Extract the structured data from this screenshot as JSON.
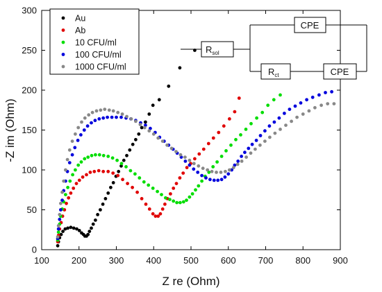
{
  "chart_data": {
    "type": "scatter",
    "xlabel": "Z re (Ohm)",
    "ylabel": "-Z im (Ohm)",
    "xlim": [
      100,
      900
    ],
    "ylim": [
      0,
      300
    ],
    "xticks": [
      100,
      200,
      300,
      400,
      500,
      600,
      700,
      800,
      900
    ],
    "yticks": [
      0,
      50,
      100,
      150,
      200,
      250,
      300
    ],
    "legend_position": "top-left",
    "series": [
      {
        "name": "Au",
        "color": "#000000",
        "points": [
          [
            143,
            5
          ],
          [
            145,
            10
          ],
          [
            148,
            15
          ],
          [
            152,
            19
          ],
          [
            157,
            23
          ],
          [
            163,
            26
          ],
          [
            170,
            27
          ],
          [
            178,
            28
          ],
          [
            186,
            27
          ],
          [
            194,
            26
          ],
          [
            201,
            24
          ],
          [
            207,
            21
          ],
          [
            212,
            19
          ],
          [
            216,
            17
          ],
          [
            220,
            17
          ],
          [
            224,
            19
          ],
          [
            228,
            23
          ],
          [
            233,
            27
          ],
          [
            238,
            32
          ],
          [
            244,
            37
          ],
          [
            250,
            44
          ],
          [
            257,
            50
          ],
          [
            264,
            57
          ],
          [
            271,
            64
          ],
          [
            278,
            71
          ],
          [
            285,
            78
          ],
          [
            292,
            84
          ],
          [
            299,
            92
          ],
          [
            306,
            98
          ],
          [
            313,
            105
          ],
          [
            320,
            112
          ],
          [
            328,
            118
          ],
          [
            336,
            125
          ],
          [
            344,
            132
          ],
          [
            352,
            138
          ],
          [
            360,
            145
          ],
          [
            368,
            153
          ],
          [
            378,
            160
          ],
          [
            388,
            170
          ],
          [
            398,
            181
          ],
          [
            415,
            188
          ],
          [
            440,
            205
          ],
          [
            470,
            228
          ],
          [
            510,
            250
          ]
        ]
      },
      {
        "name": "Ab",
        "color": "#e00000",
        "points": [
          [
            143,
            10
          ],
          [
            145,
            18
          ],
          [
            148,
            26
          ],
          [
            152,
            34
          ],
          [
            156,
            42
          ],
          [
            161,
            50
          ],
          [
            166,
            58
          ],
          [
            172,
            65
          ],
          [
            178,
            71
          ],
          [
            185,
            77
          ],
          [
            193,
            83
          ],
          [
            201,
            87
          ],
          [
            210,
            91
          ],
          [
            220,
            94
          ],
          [
            230,
            97
          ],
          [
            241,
            98
          ],
          [
            253,
            99
          ],
          [
            265,
            98
          ],
          [
            278,
            98
          ],
          [
            291,
            96
          ],
          [
            304,
            93
          ],
          [
            317,
            88
          ],
          [
            330,
            83
          ],
          [
            343,
            78
          ],
          [
            356,
            72
          ],
          [
            368,
            64
          ],
          [
            379,
            57
          ],
          [
            389,
            51
          ],
          [
            398,
            45
          ],
          [
            405,
            42
          ],
          [
            412,
            42
          ],
          [
            418,
            45
          ],
          [
            424,
            51
          ],
          [
            430,
            57
          ],
          [
            437,
            64
          ],
          [
            445,
            70
          ],
          [
            453,
            77
          ],
          [
            461,
            83
          ],
          [
            470,
            90
          ],
          [
            479,
            96
          ],
          [
            489,
            103
          ],
          [
            499,
            108
          ],
          [
            510,
            114
          ],
          [
            522,
            120
          ],
          [
            534,
            126
          ],
          [
            547,
            133
          ],
          [
            560,
            140
          ],
          [
            574,
            147
          ],
          [
            588,
            155
          ],
          [
            603,
            164
          ],
          [
            617,
            173
          ],
          [
            629,
            190
          ]
        ]
      },
      {
        "name": "10 CFU/ml",
        "color": "#00dd00",
        "points": [
          [
            143,
            12
          ],
          [
            145,
            22
          ],
          [
            148,
            32
          ],
          [
            151,
            42
          ],
          [
            155,
            51
          ],
          [
            159,
            60
          ],
          [
            164,
            69
          ],
          [
            170,
            78
          ],
          [
            176,
            86
          ],
          [
            183,
            94
          ],
          [
            190,
            100
          ],
          [
            198,
            106
          ],
          [
            206,
            110
          ],
          [
            215,
            114
          ],
          [
            224,
            116
          ],
          [
            234,
            118
          ],
          [
            244,
            119
          ],
          [
            255,
            119
          ],
          [
            266,
            118
          ],
          [
            278,
            117
          ],
          [
            290,
            115
          ],
          [
            302,
            112
          ],
          [
            314,
            108
          ],
          [
            326,
            104
          ],
          [
            338,
            99
          ],
          [
            350,
            95
          ],
          [
            362,
            90
          ],
          [
            374,
            85
          ],
          [
            386,
            81
          ],
          [
            398,
            77
          ],
          [
            410,
            73
          ],
          [
            421,
            69
          ],
          [
            432,
            65
          ],
          [
            443,
            63
          ],
          [
            453,
            61
          ],
          [
            462,
            59
          ],
          [
            471,
            59
          ],
          [
            480,
            60
          ],
          [
            488,
            62
          ],
          [
            496,
            66
          ],
          [
            504,
            70
          ],
          [
            512,
            75
          ],
          [
            520,
            80
          ],
          [
            529,
            86
          ],
          [
            538,
            92
          ],
          [
            548,
            97
          ],
          [
            559,
            104
          ],
          [
            570,
            110
          ],
          [
            582,
            117
          ],
          [
            594,
            124
          ],
          [
            607,
            131
          ],
          [
            620,
            138
          ],
          [
            633,
            144
          ],
          [
            647,
            151
          ],
          [
            661,
            158
          ],
          [
            676,
            165
          ],
          [
            691,
            172
          ],
          [
            706,
            181
          ],
          [
            722,
            188
          ],
          [
            739,
            194
          ]
        ]
      },
      {
        "name": "100 CFU/ml",
        "color": "#0000dd",
        "points": [
          [
            143,
            14
          ],
          [
            145,
            26
          ],
          [
            148,
            38
          ],
          [
            151,
            50
          ],
          [
            155,
            62
          ],
          [
            159,
            74
          ],
          [
            164,
            86
          ],
          [
            169,
            98
          ],
          [
            175,
            109
          ],
          [
            182,
            119
          ],
          [
            189,
            128
          ],
          [
            197,
            137
          ],
          [
            205,
            144
          ],
          [
            214,
            150
          ],
          [
            223,
            155
          ],
          [
            233,
            159
          ],
          [
            243,
            162
          ],
          [
            254,
            164
          ],
          [
            265,
            165
          ],
          [
            276,
            166
          ],
          [
            288,
            166
          ],
          [
            300,
            166
          ],
          [
            313,
            166
          ],
          [
            326,
            165
          ],
          [
            339,
            164
          ],
          [
            352,
            162
          ],
          [
            365,
            159
          ],
          [
            378,
            156
          ],
          [
            391,
            152
          ],
          [
            404,
            147
          ],
          [
            416,
            141
          ],
          [
            428,
            136
          ],
          [
            440,
            131
          ],
          [
            452,
            126
          ],
          [
            463,
            121
          ],
          [
            474,
            116
          ],
          [
            485,
            111
          ],
          [
            496,
            106
          ],
          [
            507,
            101
          ],
          [
            518,
            97
          ],
          [
            529,
            93
          ],
          [
            540,
            90
          ],
          [
            551,
            88
          ],
          [
            562,
            87
          ],
          [
            572,
            87
          ],
          [
            582,
            88
          ],
          [
            591,
            91
          ],
          [
            600,
            95
          ],
          [
            609,
            100
          ],
          [
            617,
            106
          ],
          [
            626,
            111
          ],
          [
            635,
            117
          ],
          [
            644,
            122
          ],
          [
            654,
            127
          ],
          [
            664,
            132
          ],
          [
            675,
            137
          ],
          [
            686,
            143
          ],
          [
            698,
            149
          ],
          [
            710,
            155
          ],
          [
            723,
            160
          ],
          [
            736,
            165
          ],
          [
            750,
            171
          ],
          [
            764,
            176
          ],
          [
            779,
            180
          ],
          [
            794,
            184
          ],
          [
            810,
            188
          ],
          [
            826,
            191
          ],
          [
            843,
            194
          ],
          [
            860,
            197
          ],
          [
            877,
            198
          ]
        ]
      },
      {
        "name": "1000 CFU/ml",
        "color": "#888888",
        "points": [
          [
            143,
            16
          ],
          [
            145,
            30
          ],
          [
            148,
            44
          ],
          [
            151,
            58
          ],
          [
            155,
            72
          ],
          [
            159,
            86
          ],
          [
            164,
            100
          ],
          [
            169,
            113
          ],
          [
            175,
            125
          ],
          [
            182,
            136
          ],
          [
            190,
            145
          ],
          [
            198,
            153
          ],
          [
            207,
            160
          ],
          [
            216,
            165
          ],
          [
            226,
            169
          ],
          [
            236,
            172
          ],
          [
            247,
            174
          ],
          [
            258,
            175
          ],
          [
            269,
            176
          ],
          [
            281,
            175
          ],
          [
            292,
            174
          ],
          [
            304,
            172
          ],
          [
            316,
            170
          ],
          [
            328,
            167
          ],
          [
            340,
            164
          ],
          [
            352,
            161
          ],
          [
            364,
            157
          ],
          [
            376,
            153
          ],
          [
            388,
            149
          ],
          [
            400,
            145
          ],
          [
            412,
            140
          ],
          [
            424,
            136
          ],
          [
            436,
            131
          ],
          [
            448,
            127
          ],
          [
            460,
            123
          ],
          [
            472,
            119
          ],
          [
            484,
            116
          ],
          [
            496,
            112
          ],
          [
            508,
            108
          ],
          [
            520,
            105
          ],
          [
            532,
            102
          ],
          [
            544,
            100
          ],
          [
            556,
            98
          ],
          [
            568,
            97
          ],
          [
            580,
            97
          ],
          [
            592,
            98
          ],
          [
            603,
            100
          ],
          [
            614,
            103
          ],
          [
            625,
            107
          ],
          [
            636,
            111
          ],
          [
            648,
            116
          ],
          [
            660,
            121
          ],
          [
            672,
            126
          ],
          [
            685,
            131
          ],
          [
            698,
            136
          ],
          [
            711,
            141
          ],
          [
            725,
            146
          ],
          [
            739,
            151
          ],
          [
            754,
            156
          ],
          [
            769,
            161
          ],
          [
            784,
            166
          ],
          [
            800,
            170
          ],
          [
            816,
            174
          ],
          [
            832,
            178
          ],
          [
            849,
            181
          ],
          [
            866,
            183
          ],
          [
            883,
            183
          ]
        ]
      }
    ]
  },
  "circuit": {
    "r_sol_main": "R",
    "r_sol_sub": "sol",
    "r_ct_main": "R",
    "r_ct_sub": "ct",
    "cpe_top": "CPE",
    "cpe_bottom": "CPE"
  }
}
